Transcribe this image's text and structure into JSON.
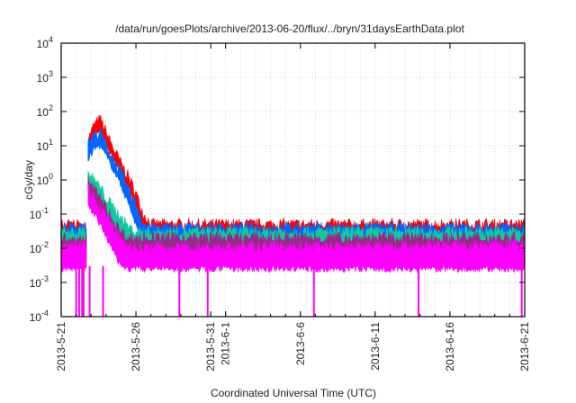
{
  "chart_data": {
    "type": "line",
    "title": "/data/run/goesPlots/archive/2013-06-20/flux/../bryn/31daysEarthData.plot",
    "xlabel": "Coordinated Universal Time (UTC)",
    "ylabel": "cGy/day",
    "yscale": "log",
    "ylim": [
      0.0001,
      10000
    ],
    "xlim_days_since_start": [
      0,
      31
    ],
    "x_start_date": "2013-5-21",
    "grid": true,
    "y_ticks": [
      {
        "base": "10",
        "exp": "4",
        "value": 10000
      },
      {
        "base": "10",
        "exp": "3",
        "value": 1000
      },
      {
        "base": "10",
        "exp": "2",
        "value": 100
      },
      {
        "base": "10",
        "exp": "1",
        "value": 10
      },
      {
        "base": "10",
        "exp": "0",
        "value": 1
      },
      {
        "base": "10",
        "exp": "-1",
        "value": 0.1
      },
      {
        "base": "10",
        "exp": "-2",
        "value": 0.01
      },
      {
        "base": "10",
        "exp": "-3",
        "value": 0.001
      },
      {
        "base": "10",
        "exp": "-4",
        "value": 0.0001
      }
    ],
    "x_ticks": [
      {
        "label": "2013-5-21",
        "day": 0
      },
      {
        "label": "2013-5-26",
        "day": 5
      },
      {
        "label": "2013-5-31",
        "day": 10
      },
      {
        "label": "2013-6-1",
        "day": 11
      },
      {
        "label": "2013-6-6",
        "day": 16
      },
      {
        "label": "2013-6-11",
        "day": 21
      },
      {
        "label": "2013-6-16",
        "day": 26
      },
      {
        "label": "2013-6-21",
        "day": 31
      }
    ],
    "x": [
      0,
      1.7,
      1.8,
      2.2,
      2.6,
      3,
      3.5,
      4,
      4.5,
      5,
      5.5,
      6,
      31
    ],
    "series": [
      {
        "name": "red",
        "color": "#ff0000",
        "high": [
          0.05,
          0.05,
          15,
          40,
          60,
          25,
          8,
          3,
          1.2,
          0.4,
          0.1,
          0.05,
          0.05
        ],
        "low": [
          0.015,
          0.015,
          8,
          20,
          25,
          12,
          4,
          1.5,
          0.5,
          0.15,
          0.03,
          0.015,
          0.015
        ]
      },
      {
        "name": "blue",
        "color": "#0066ff",
        "high": [
          0.04,
          0.04,
          12,
          20,
          25,
          10,
          4,
          1.5,
          0.5,
          0.2,
          0.05,
          0.04,
          0.04
        ],
        "low": [
          0.01,
          0.01,
          4,
          8,
          10,
          5,
          2,
          0.7,
          0.2,
          0.05,
          0.01,
          0.01,
          0.01
        ]
      },
      {
        "name": "teal",
        "color": "#10c8a0",
        "high": [
          0.03,
          0.03,
          1.5,
          1.0,
          0.6,
          0.3,
          0.15,
          0.08,
          0.04,
          0.03,
          0.03,
          0.03,
          0.03
        ],
        "low": [
          0.008,
          0.008,
          0.6,
          0.4,
          0.2,
          0.1,
          0.05,
          0.02,
          0.01,
          0.008,
          0.008,
          0.008,
          0.008
        ]
      },
      {
        "name": "purple",
        "color": "#9a2a8a",
        "high": [
          0.02,
          0.02,
          1.0,
          0.5,
          0.3,
          0.15,
          0.06,
          0.03,
          0.02,
          0.02,
          0.02,
          0.02,
          0.02
        ],
        "low": [
          0.004,
          0.004,
          0.4,
          0.2,
          0.1,
          0.05,
          0.02,
          0.006,
          0.004,
          0.004,
          0.004,
          0.004,
          0.004
        ]
      },
      {
        "name": "magenta",
        "color": "#ff00ff",
        "high": [
          0.012,
          0.012,
          0.6,
          0.3,
          0.15,
          0.08,
          0.04,
          0.015,
          0.01,
          0.01,
          0.01,
          0.01,
          0.012
        ],
        "low": [
          0.0025,
          0.0025,
          0.2,
          0.1,
          0.05,
          0.02,
          0.008,
          0.003,
          0.0025,
          0.0025,
          0.0025,
          0.0025,
          0.0025
        ]
      }
    ],
    "magenta_dropouts_days": [
      1.0,
      1.2,
      1.4,
      1.5,
      1.9,
      2.8,
      7.9,
      9.8,
      16.9,
      23.9,
      30.8
    ]
  }
}
